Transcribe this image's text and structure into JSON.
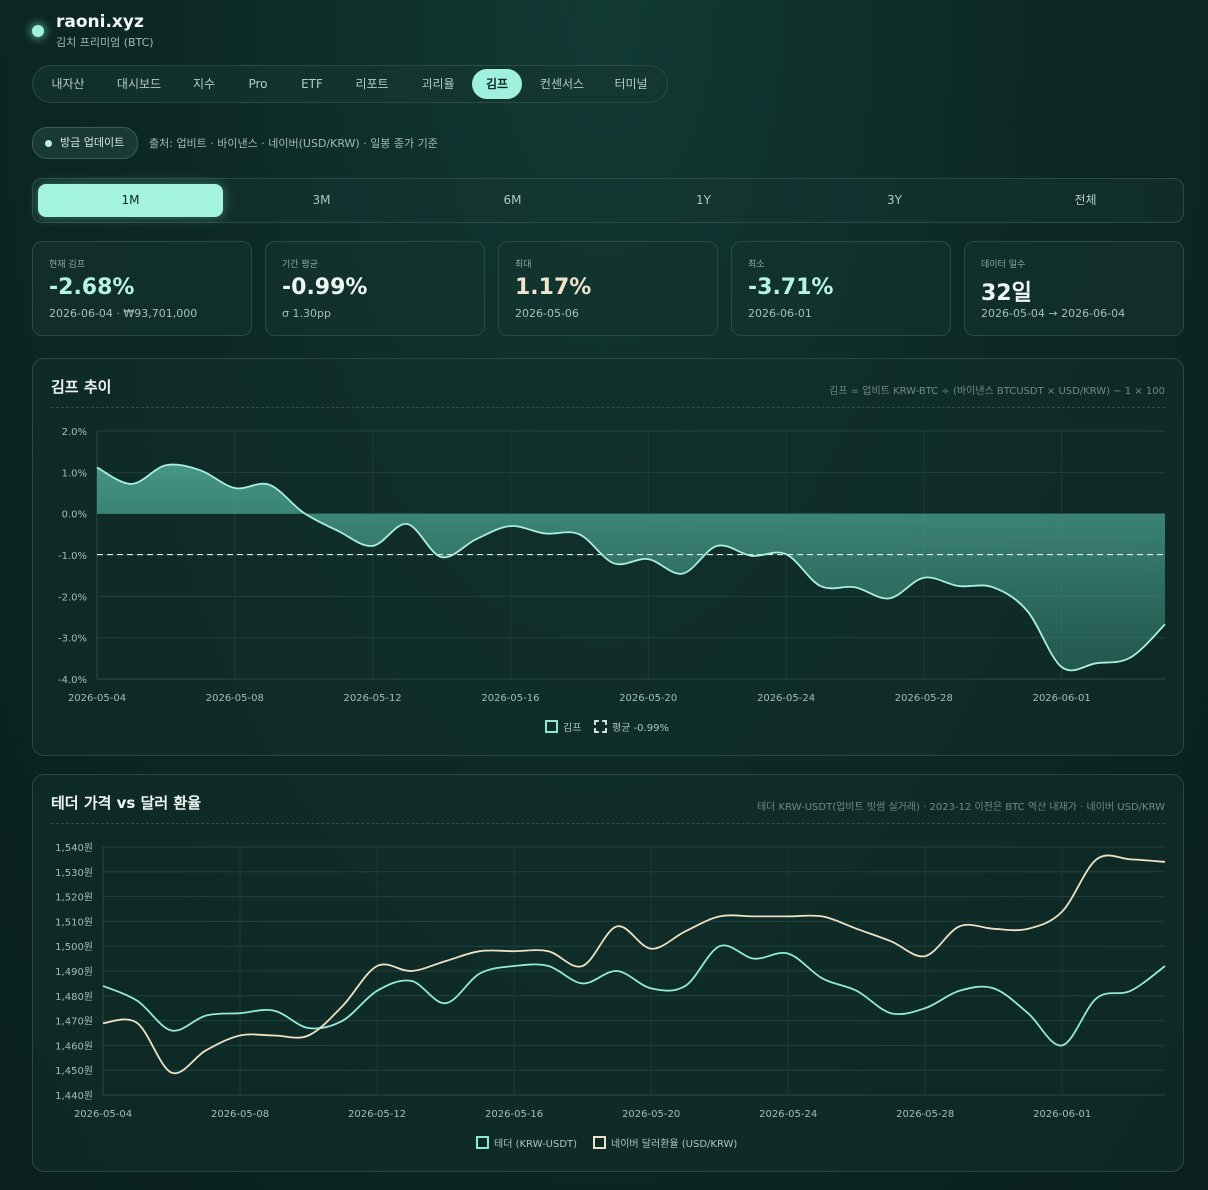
{
  "brand": {
    "name": "raoni.xyz",
    "subtitle": "김치 프리미엄 (BTC)"
  },
  "nav": {
    "items": [
      "내자산",
      "대시보드",
      "지수",
      "Pro",
      "ETF",
      "리포트",
      "괴리율",
      "김프",
      "컨센서스",
      "터미널"
    ],
    "active": "김프"
  },
  "update": {
    "button_label": "방금 업데이트",
    "source_text": "출처: 업비트 · 바이낸스 · 네이버(USD/KRW) · 일봉 종가 기준"
  },
  "periods": {
    "items": [
      "1M",
      "3M",
      "6M",
      "1Y",
      "3Y",
      "전체"
    ],
    "active": "1M"
  },
  "stats": [
    {
      "label": "현재 김프",
      "value": "-2.68%",
      "sub": "2026-06-04 · ₩93,701,000"
    },
    {
      "label": "기간 평균",
      "value": "-0.99%",
      "sub": "σ 1.30pp"
    },
    {
      "label": "최대",
      "value": "1.17%",
      "sub": "2026-05-06"
    },
    {
      "label": "최소",
      "value": "-3.71%",
      "sub": "2026-06-01"
    },
    {
      "label": "데이터 일수",
      "value": "32일",
      "sub": "2026-05-04 → 2026-06-04"
    }
  ],
  "colors": {
    "accent": "#9ff0dc",
    "kimp_line": "#a8f0de",
    "usdt_line": "#93ead5",
    "fx_line": "#ece1c5"
  },
  "chart_data": [
    {
      "type": "area",
      "title": "김프 추이",
      "formula": "김프 = 업비트 KRW-BTC ÷ (바이낸스 BTCUSDT × USD/KRW) − 1 × 100",
      "x_ticks": [
        "2026-05-04",
        "2026-05-08",
        "2026-05-12",
        "2026-05-16",
        "2026-05-20",
        "2026-05-24",
        "2026-05-28",
        "2026-06-01"
      ],
      "y_ticks": [
        "2.0%",
        "1.0%",
        "0.0%",
        "-1.0%",
        "-2.0%",
        "-3.0%",
        "-4.0%"
      ],
      "ylim": [
        -4,
        2
      ],
      "reference_line": -0.99,
      "grid": true,
      "legend_position": "bottom-center",
      "legend": [
        "김프",
        "평균 -0.99%"
      ],
      "series": [
        {
          "name": "김프",
          "x": [
            "2026-05-04",
            "2026-05-05",
            "2026-05-06",
            "2026-05-07",
            "2026-05-08",
            "2026-05-09",
            "2026-05-10",
            "2026-05-11",
            "2026-05-12",
            "2026-05-13",
            "2026-05-14",
            "2026-05-15",
            "2026-05-16",
            "2026-05-17",
            "2026-05-18",
            "2026-05-19",
            "2026-05-20",
            "2026-05-21",
            "2026-05-22",
            "2026-05-23",
            "2026-05-24",
            "2026-05-25",
            "2026-05-26",
            "2026-05-27",
            "2026-05-28",
            "2026-05-29",
            "2026-05-30",
            "2026-05-31",
            "2026-06-01",
            "2026-06-02",
            "2026-06-03",
            "2026-06-04"
          ],
          "values": [
            1.12,
            0.72,
            1.17,
            1.05,
            0.62,
            0.7,
            0.02,
            -0.42,
            -0.78,
            -0.25,
            -1.05,
            -0.62,
            -0.3,
            -0.48,
            -0.5,
            -1.2,
            -1.1,
            -1.45,
            -0.78,
            -1.02,
            -0.98,
            -1.75,
            -1.78,
            -2.05,
            -1.55,
            -1.75,
            -1.78,
            -2.35,
            -3.71,
            -3.62,
            -3.48,
            -2.68
          ]
        }
      ]
    },
    {
      "type": "line",
      "title": "테더 가격 vs 달러 환율",
      "note": "테더 KRW-USDT(업비트 빗썸 실거래) · 2023-12 이전은 BTC 역산 내재가 · 네이버 USD/KRW",
      "x_ticks": [
        "2026-05-04",
        "2026-05-08",
        "2026-05-12",
        "2026-05-16",
        "2026-05-20",
        "2026-05-24",
        "2026-05-28",
        "2026-06-01"
      ],
      "y_ticks": [
        "1,540원",
        "1,530원",
        "1,520원",
        "1,510원",
        "1,500원",
        "1,490원",
        "1,480원",
        "1,470원",
        "1,460원",
        "1,450원",
        "1,440원"
      ],
      "ylim": [
        1440,
        1540
      ],
      "grid": true,
      "legend_position": "bottom-center",
      "legend": [
        "테더 (KRW-USDT)",
        "네이버 달러환율 (USD/KRW)"
      ],
      "series": [
        {
          "name": "테더 (KRW-USDT)",
          "x": [
            "2026-05-04",
            "2026-05-05",
            "2026-05-06",
            "2026-05-07",
            "2026-05-08",
            "2026-05-09",
            "2026-05-10",
            "2026-05-11",
            "2026-05-12",
            "2026-05-13",
            "2026-05-14",
            "2026-05-15",
            "2026-05-16",
            "2026-05-17",
            "2026-05-18",
            "2026-05-19",
            "2026-05-20",
            "2026-05-21",
            "2026-05-22",
            "2026-05-23",
            "2026-05-24",
            "2026-05-25",
            "2026-05-26",
            "2026-05-27",
            "2026-05-28",
            "2026-05-29",
            "2026-05-30",
            "2026-05-31",
            "2026-06-01",
            "2026-06-02",
            "2026-06-03",
            "2026-06-04"
          ],
          "values": [
            1484,
            1478,
            1466,
            1472,
            1473,
            1474,
            1467,
            1470,
            1482,
            1486,
            1477,
            1489,
            1492,
            1492,
            1485,
            1490,
            1483,
            1484,
            1500,
            1495,
            1497,
            1487,
            1482,
            1473,
            1475,
            1482,
            1483,
            1473,
            1460,
            1479,
            1482,
            1492
          ]
        },
        {
          "name": "네이버 달러환율 (USD/KRW)",
          "x": [
            "2026-05-04",
            "2026-05-05",
            "2026-05-06",
            "2026-05-07",
            "2026-05-08",
            "2026-05-09",
            "2026-05-10",
            "2026-05-11",
            "2026-05-12",
            "2026-05-13",
            "2026-05-14",
            "2026-05-15",
            "2026-05-16",
            "2026-05-17",
            "2026-05-18",
            "2026-05-19",
            "2026-05-20",
            "2026-05-21",
            "2026-05-22",
            "2026-05-23",
            "2026-05-24",
            "2026-05-25",
            "2026-05-26",
            "2026-05-27",
            "2026-05-28",
            "2026-05-29",
            "2026-05-30",
            "2026-05-31",
            "2026-06-01",
            "2026-06-02",
            "2026-06-03",
            "2026-06-04"
          ],
          "values": [
            1469,
            1469,
            1449,
            1458,
            1464,
            1464,
            1464,
            1476,
            1492,
            1490,
            1494,
            1498,
            1498,
            1498,
            1492,
            1508,
            1499,
            1506,
            1512,
            1512,
            1512,
            1512,
            1507,
            1502,
            1496,
            1508,
            1507,
            1507,
            1514,
            1535,
            1535,
            1534
          ]
        }
      ]
    }
  ]
}
